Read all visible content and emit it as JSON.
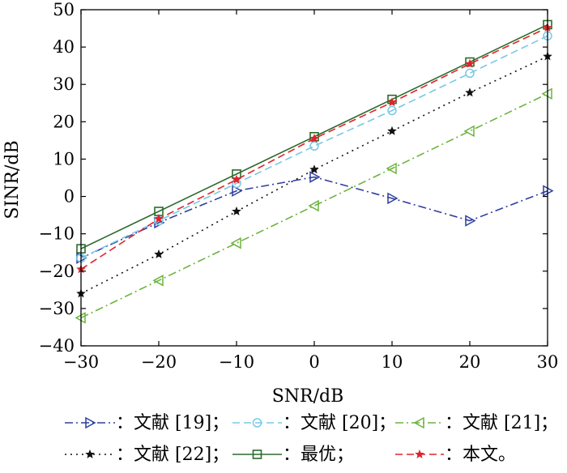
{
  "chart_data": {
    "type": "line",
    "xlabel": "SNR/dB",
    "ylabel": "SINR/dB",
    "xlim": [
      -30,
      30
    ],
    "ylim": [
      -40,
      50
    ],
    "xticks": [
      -30,
      -20,
      -10,
      0,
      10,
      20,
      30
    ],
    "yticks": [
      -40,
      -30,
      -20,
      -10,
      0,
      10,
      20,
      30,
      40,
      50
    ],
    "xtick_labels": [
      "−30",
      "−20",
      "−10",
      "0",
      "10",
      "20",
      "30"
    ],
    "ytick_labels": [
      "−40",
      "−30",
      "−20",
      "−10",
      "0",
      "10",
      "20",
      "30",
      "40",
      "50"
    ],
    "grid": false,
    "legend_position": "bottom",
    "x": [
      -30,
      -20,
      -10,
      0,
      10,
      20,
      30
    ],
    "series": [
      {
        "name": "：文献 [19]；",
        "values": [
          -16.5,
          -7,
          1.5,
          5.2,
          -0.5,
          -6.5,
          1.5
        ],
        "color": "#2e3f9e",
        "dash": "10,4,2,4",
        "marker": "triangle-right"
      },
      {
        "name": "：文献 [20]；",
        "values": [
          -16.5,
          -6.5,
          3.5,
          13.5,
          23,
          33,
          43
        ],
        "color": "#78c8e6",
        "dash": "9,5",
        "marker": "circle"
      },
      {
        "name": "：文献 [21]；",
        "values": [
          -32.5,
          -22.5,
          -12.5,
          -2.5,
          7.5,
          17.5,
          27.5
        ],
        "color": "#6db33f",
        "dash": "10,4,2,4",
        "marker": "triangle-left"
      },
      {
        "name": "：文献 [22]；",
        "values": [
          -26,
          -15.5,
          -4,
          7.2,
          17.5,
          27.8,
          37.5
        ],
        "color": "#111111",
        "dash": "2,5",
        "marker": "star"
      },
      {
        "name": "：最优；",
        "values": [
          -14,
          -4,
          6,
          16,
          26,
          36,
          46
        ],
        "color": "#2d6a2d",
        "dash": "",
        "marker": "square"
      },
      {
        "name": "：本文。",
        "values": [
          -19.5,
          -6,
          4.5,
          15.5,
          25.2,
          35.5,
          45.2
        ],
        "color": "#e0232a",
        "dash": "9,5",
        "marker": "star"
      }
    ]
  }
}
